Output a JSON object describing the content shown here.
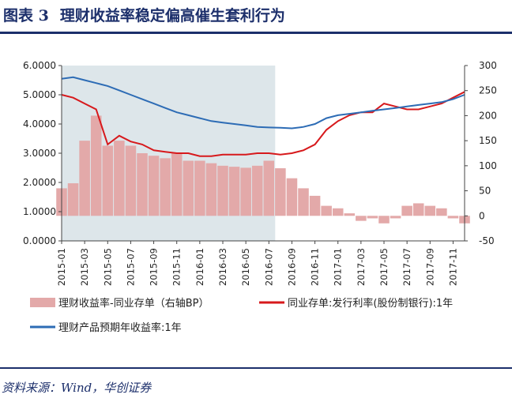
{
  "figure": {
    "label": "图表 3",
    "title": "理财收益率稳定偏高催生套利行为",
    "source": "资料来源：Wind，华创证券"
  },
  "chart_data": {
    "type": "line",
    "shaded_region": {
      "from": "2015-01",
      "to": "2016-07"
    },
    "x_tick_labels": [
      "2015-01",
      "2015-03",
      "2015-05",
      "2015-07",
      "2015-09",
      "2015-11",
      "2016-01",
      "2016-03",
      "2016-05",
      "2016-07",
      "2016-09",
      "2016-11",
      "2017-01",
      "2017-03",
      "2017-05",
      "2017-07",
      "2017-09",
      "2017-11"
    ],
    "y_left": {
      "ylim": [
        0,
        6
      ],
      "tick_labels": [
        "0.0000",
        "1.0000",
        "2.0000",
        "3.0000",
        "4.0000",
        "5.0000",
        "6.0000"
      ]
    },
    "y_right": {
      "ylim": [
        -50,
        300
      ],
      "tick_labels": [
        "-50",
        "0",
        "50",
        "100",
        "150",
        "200",
        "250",
        "300"
      ]
    },
    "legend_placement": "bottom",
    "series": [
      {
        "name": "理财收益率-同业存单（右轴BP）",
        "type": "area",
        "axis": "right",
        "color": "#e3a9a9",
        "x": [
          "2015-01",
          "2015-02",
          "2015-03",
          "2015-04",
          "2015-05",
          "2015-06",
          "2015-07",
          "2015-08",
          "2015-09",
          "2015-10",
          "2015-11",
          "2015-12",
          "2016-01",
          "2016-02",
          "2016-03",
          "2016-04",
          "2016-05",
          "2016-06",
          "2016-07",
          "2016-08",
          "2016-09",
          "2016-10",
          "2016-11",
          "2016-12",
          "2017-01",
          "2017-02",
          "2017-03",
          "2017-04",
          "2017-05",
          "2017-06",
          "2017-07",
          "2017-08",
          "2017-09",
          "2017-10",
          "2017-11",
          "2017-12"
        ],
        "values": [
          55,
          65,
          150,
          200,
          140,
          150,
          140,
          125,
          120,
          115,
          125,
          110,
          110,
          105,
          100,
          98,
          96,
          100,
          110,
          95,
          75,
          55,
          40,
          20,
          15,
          5,
          -10,
          -5,
          -15,
          -5,
          20,
          25,
          20,
          15,
          -5,
          -15
        ]
      },
      {
        "name": "同业存单:发行利率(股份制银行):1年",
        "type": "line",
        "axis": "left",
        "color": "#d7191c",
        "x": [
          "2015-01",
          "2015-02",
          "2015-03",
          "2015-04",
          "2015-05",
          "2015-06",
          "2015-07",
          "2015-08",
          "2015-09",
          "2015-10",
          "2015-11",
          "2015-12",
          "2016-01",
          "2016-02",
          "2016-03",
          "2016-04",
          "2016-05",
          "2016-06",
          "2016-07",
          "2016-08",
          "2016-09",
          "2016-10",
          "2016-11",
          "2016-12",
          "2017-01",
          "2017-02",
          "2017-03",
          "2017-04",
          "2017-05",
          "2017-06",
          "2017-07",
          "2017-08",
          "2017-09",
          "2017-10",
          "2017-11",
          "2017-12"
        ],
        "values": [
          5.0,
          4.9,
          4.7,
          4.5,
          3.3,
          3.6,
          3.4,
          3.3,
          3.1,
          3.05,
          3.0,
          3.0,
          2.9,
          2.9,
          2.95,
          2.95,
          2.95,
          3.0,
          3.0,
          2.95,
          3.0,
          3.1,
          3.3,
          3.8,
          4.1,
          4.3,
          4.4,
          4.4,
          4.7,
          4.6,
          4.5,
          4.5,
          4.6,
          4.7,
          4.9,
          5.1
        ]
      },
      {
        "name": "理财产品预期年收益率:1年",
        "type": "line",
        "axis": "left",
        "color": "#2d6cb5",
        "x": [
          "2015-01",
          "2015-02",
          "2015-03",
          "2015-04",
          "2015-05",
          "2015-06",
          "2015-07",
          "2015-08",
          "2015-09",
          "2015-10",
          "2015-11",
          "2015-12",
          "2016-01",
          "2016-02",
          "2016-03",
          "2016-04",
          "2016-05",
          "2016-06",
          "2016-07",
          "2016-08",
          "2016-09",
          "2016-10",
          "2016-11",
          "2016-12",
          "2017-01",
          "2017-02",
          "2017-03",
          "2017-04",
          "2017-05",
          "2017-06",
          "2017-07",
          "2017-08",
          "2017-09",
          "2017-10",
          "2017-11",
          "2017-12"
        ],
        "values": [
          5.55,
          5.6,
          5.5,
          5.4,
          5.3,
          5.15,
          5.0,
          4.85,
          4.7,
          4.55,
          4.4,
          4.3,
          4.2,
          4.1,
          4.05,
          4.0,
          3.95,
          3.9,
          3.88,
          3.87,
          3.85,
          3.9,
          4.0,
          4.2,
          4.3,
          4.35,
          4.4,
          4.45,
          4.5,
          4.55,
          4.6,
          4.65,
          4.7,
          4.75,
          4.85,
          5.0
        ]
      }
    ]
  }
}
